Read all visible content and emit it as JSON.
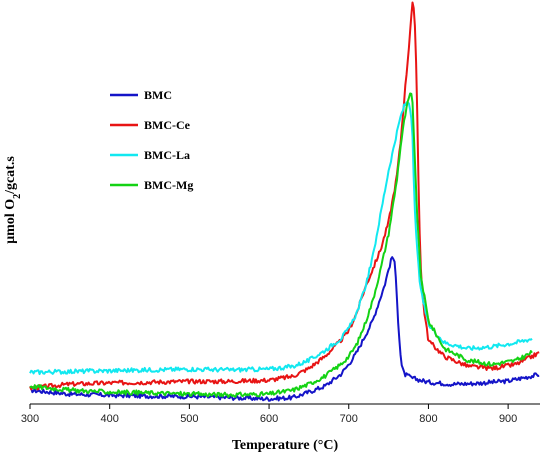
{
  "chart_data": {
    "type": "line",
    "xlabel": "Temperature (°C)",
    "ylabel_parts": [
      "μmol O",
      "2",
      "/gcat.s"
    ],
    "xlim": [
      300,
      940
    ],
    "ylim": [
      0,
      100
    ],
    "xticks": [
      300,
      400,
      500,
      600,
      700,
      800,
      900
    ],
    "grid": false,
    "legend_position": "top-left",
    "series": [
      {
        "name": "BMC",
        "color": "#1414c8",
        "x": [
          300,
          350,
          400,
          450,
          500,
          550,
          600,
          630,
          650,
          670,
          690,
          700,
          710,
          720,
          730,
          740,
          745,
          750,
          755,
          758,
          760,
          762,
          764,
          766,
          768,
          770,
          780,
          800,
          830,
          860,
          900,
          940
        ],
        "y": [
          2.5,
          1.5,
          1.2,
          1.0,
          0.9,
          0.6,
          0.3,
          0.6,
          2.0,
          3.5,
          6.5,
          9.0,
          12.0,
          16.0,
          20.0,
          26.0,
          29.0,
          33.0,
          36.5,
          34.0,
          28.0,
          20.0,
          14.0,
          9.0,
          7.5,
          6.5,
          5.5,
          4.5,
          4.0,
          4.2,
          4.8,
          6.5
        ]
      },
      {
        "name": "BMC-Ce",
        "color": "#e81414",
        "x": [
          300,
          350,
          400,
          450,
          500,
          550,
          600,
          630,
          650,
          670,
          690,
          700,
          710,
          720,
          730,
          740,
          750,
          760,
          765,
          770,
          775,
          778,
          780,
          782,
          784,
          786,
          788,
          790,
          792,
          795,
          800,
          820,
          850,
          880,
          910,
          940
        ],
        "y": [
          3.0,
          4.0,
          4.3,
          4.5,
          4.7,
          4.7,
          5.0,
          6.0,
          8.0,
          11.0,
          15.0,
          17.5,
          22.0,
          28.0,
          33.0,
          38.0,
          45.0,
          56.0,
          65.0,
          77.0,
          88.0,
          96.0,
          100.0,
          98.0,
          90.0,
          72.0,
          50.0,
          35.0,
          28.0,
          22.0,
          15.0,
          11.0,
          8.5,
          8.0,
          9.0,
          12.0
        ]
      },
      {
        "name": "BMC-La",
        "color": "#12e8f0",
        "x": [
          300,
          350,
          400,
          450,
          500,
          550,
          600,
          630,
          650,
          670,
          690,
          700,
          710,
          720,
          730,
          740,
          750,
          760,
          765,
          770,
          775,
          778,
          780,
          782,
          785,
          790,
          800,
          820,
          850,
          880,
          910,
          930
        ],
        "y": [
          7.0,
          7.2,
          7.4,
          7.6,
          7.8,
          7.6,
          7.8,
          8.5,
          10.0,
          12.5,
          15.5,
          18.0,
          22.0,
          28.0,
          36.0,
          47.0,
          58.0,
          67.0,
          71.5,
          74.5,
          75.5,
          73.0,
          66.0,
          52.0,
          40.0,
          28.0,
          19.0,
          14.5,
          13.0,
          13.5,
          14.5,
          15.5
        ]
      },
      {
        "name": "BMC-Mg",
        "color": "#14d214",
        "x": [
          300,
          350,
          400,
          450,
          500,
          550,
          600,
          630,
          650,
          670,
          690,
          700,
          710,
          720,
          730,
          740,
          750,
          760,
          765,
          770,
          775,
          778,
          780,
          782,
          785,
          790,
          800,
          820,
          850,
          880,
          910,
          930
        ],
        "y": [
          3.5,
          2.5,
          2.0,
          1.8,
          1.5,
          1.3,
          1.5,
          2.5,
          4.0,
          6.0,
          9.0,
          11.0,
          14.0,
          19.0,
          25.0,
          33.0,
          42.0,
          55.0,
          64.0,
          71.0,
          76.0,
          77.5,
          75.0,
          66.0,
          50.0,
          32.0,
          20.0,
          13.0,
          10.0,
          9.0,
          10.0,
          12.0
        ]
      }
    ]
  }
}
